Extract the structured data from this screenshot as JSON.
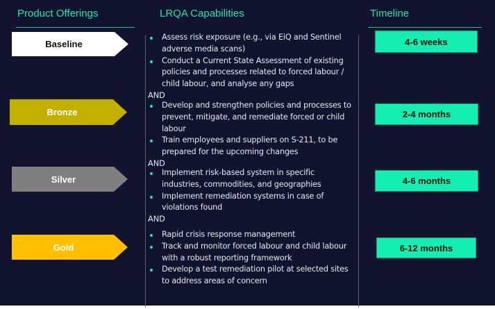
{
  "headers": {
    "offerings": "Product Offerings",
    "capabilities": "LRQA Capabilities",
    "timeline": "Timeline"
  },
  "colors": {
    "background": "#11132f",
    "accent": "#1ee6ae",
    "baseline": "#ffffff",
    "bronze": "#c4b000",
    "silver": "#7f7f7f",
    "gold": "#ffc000"
  },
  "tiers": [
    {
      "label": "Baseline",
      "timeline": "4-6 weeks",
      "capabilities": [
        "Assess risk exposure (e.g., via EiQ and Sentinel adverse media scans)",
        "Conduct a Current State Assessment of existing policies and processes related to forced labour / child labour, and analyse any gaps"
      ]
    },
    {
      "label": "Bronze",
      "timeline": "2-4 months",
      "capabilities": [
        "Develop and strengthen policies and processes to prevent, mitigate, and remediate forced or child labour",
        "Train employees and suppliers on S-211, to be prepared for the upcoming changes"
      ]
    },
    {
      "label": "Silver",
      "timeline": "4-6 months",
      "capabilities": [
        "Implement risk-based system in specific industries, commodities, and geographies",
        "Implement remediation systems in case of violations found"
      ]
    },
    {
      "label": "Gold",
      "timeline": "6-12 months",
      "capabilities": [
        "Rapid crisis response management",
        "Track and monitor forced labour and child labour with a robust reporting framework",
        "Develop a test remediation pilot at selected sites to address areas of concern"
      ]
    }
  ],
  "connector": "AND"
}
